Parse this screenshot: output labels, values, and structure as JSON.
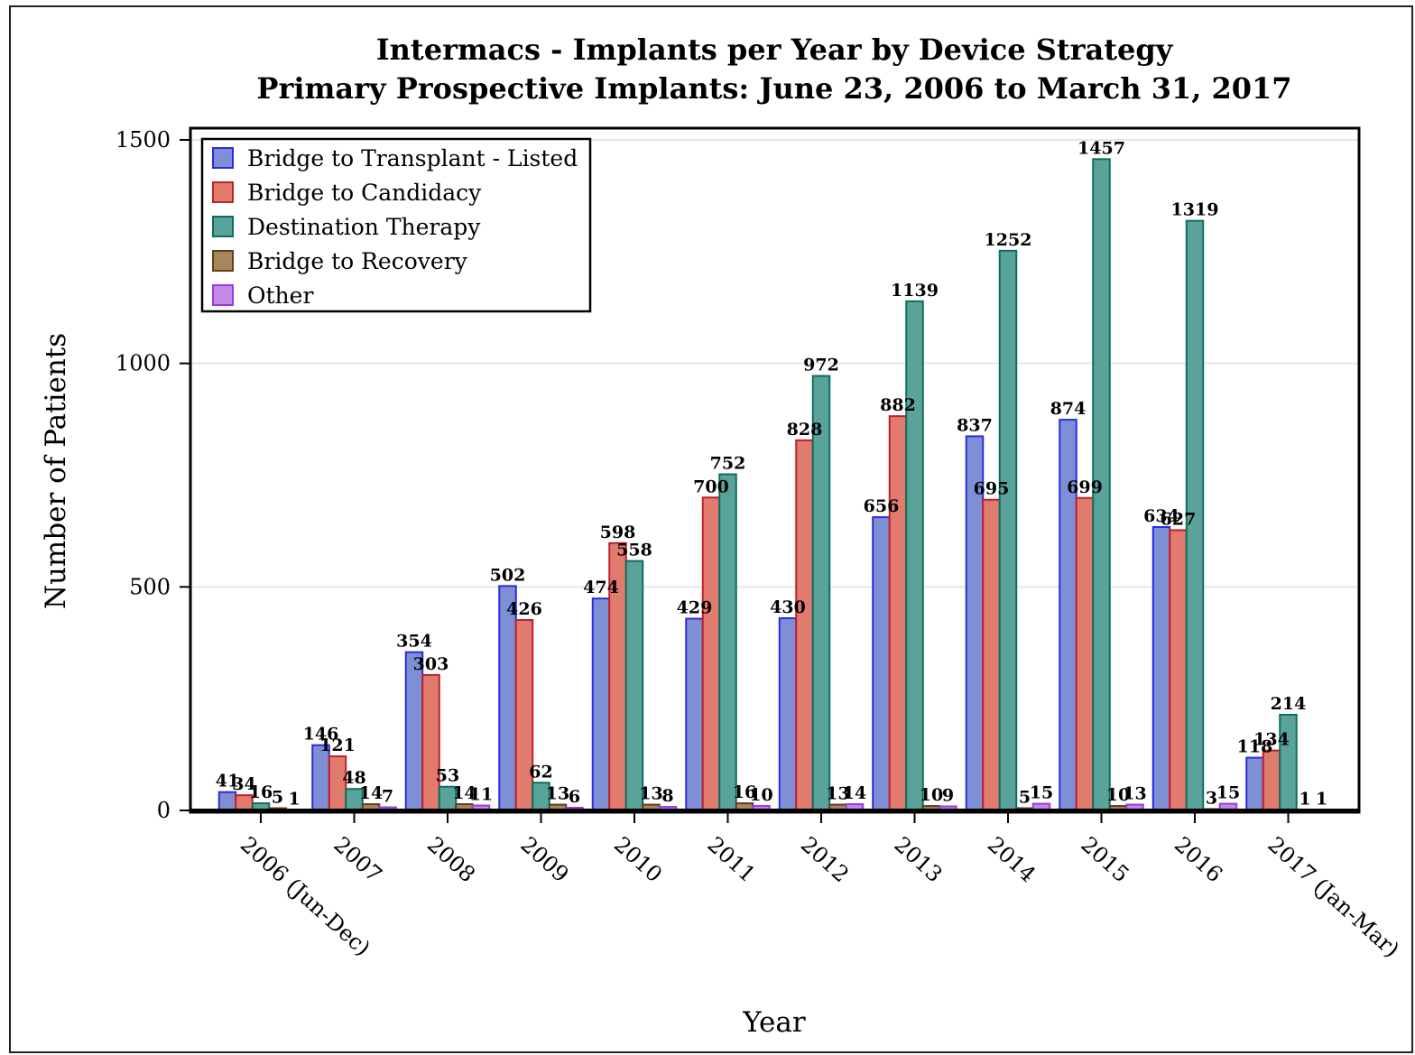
{
  "chart_data": {
    "type": "bar",
    "title": "Intermacs - Implants per Year by Device Strategy",
    "subtitle": "Primary Prospective Implants: June 23, 2006 to March 31, 2017",
    "xlabel": "Year",
    "ylabel": "Number of Patients",
    "ylim": [
      0,
      1500
    ],
    "yticks": [
      "0",
      "500",
      "1000",
      "1500"
    ],
    "ytick_values": [
      0,
      500,
      1000,
      1500
    ],
    "grid": true,
    "legend_position": "top-left",
    "categories": [
      "2006 (Jun-Dec)",
      "2007",
      "2008",
      "2009",
      "2010",
      "2011",
      "2012",
      "2013",
      "2014",
      "2015",
      "2016",
      "2017 (Jan-Mar)"
    ],
    "series": [
      {
        "name": "Bridge to Transplant - Listed",
        "fill": "#7f8fd6",
        "stroke": "#2a2ae0",
        "values": [
          41,
          146,
          354,
          502,
          474,
          429,
          430,
          656,
          837,
          874,
          634,
          118
        ]
      },
      {
        "name": "Bridge to Candidacy",
        "fill": "#e07b6e",
        "stroke": "#c0202a",
        "values": [
          34,
          121,
          303,
          426,
          598,
          700,
          828,
          882,
          695,
          699,
          627,
          134
        ]
      },
      {
        "name": "Destination Therapy",
        "fill": "#5aa39a",
        "stroke": "#0e6e5e",
        "values": [
          16,
          48,
          53,
          62,
          558,
          752,
          972,
          1139,
          1252,
          1457,
          1319,
          214
        ]
      },
      {
        "name": "Bridge to Recovery",
        "fill": "#a7865a",
        "stroke": "#5e4020",
        "values": [
          5,
          14,
          14,
          13,
          13,
          16,
          13,
          10,
          5,
          10,
          3,
          1
        ]
      },
      {
        "name": "Other",
        "fill": "#c08ae6",
        "stroke": "#9a3ae0",
        "values": [
          1,
          7,
          11,
          6,
          8,
          10,
          14,
          9,
          15,
          13,
          15,
          1
        ]
      }
    ]
  }
}
